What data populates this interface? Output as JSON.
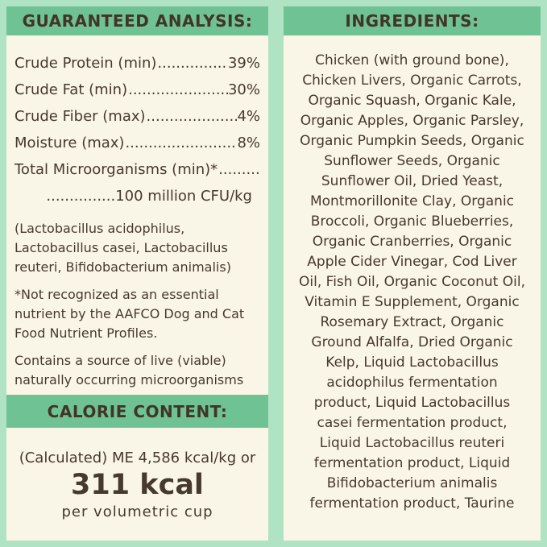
{
  "colors": {
    "frame_green": "#afe3c3",
    "header_band_green": "#6fc294",
    "panel_cream": "#faf6e7",
    "text_brown": "#46392e"
  },
  "leader_dots": "........................................................",
  "guaranteed_analysis": {
    "title": "GUARANTEED ANALYSIS:",
    "rows": [
      {
        "label": "Crude Protein (min)",
        "value": "39%"
      },
      {
        "label": "Crude Fat (min)",
        "value": "30%"
      },
      {
        "label": "Crude Fiber (max)",
        "value": "4%"
      },
      {
        "label": "Moisture (max)",
        "value": "8%"
      },
      {
        "label": "Total Microorganisms (min)*",
        "value": ""
      }
    ],
    "continuation": "...............100 million CFU/kg",
    "species_note": "(Lactobacillus acidophilus,\nLactobacillus casei, Lactobacillus\nreuteri, Bifidobacterium animalis)",
    "aafco_note": "*Not recognized as an essential\nnutrient by the AAFCO Dog and Cat\nFood Nutrient Profiles.",
    "live_note": "Contains a source of live (viable)\nnaturally occurring microorganisms"
  },
  "calorie_content": {
    "title": "CALORIE CONTENT:",
    "calculated_line": "(Calculated) ME 4,586 kcal/kg or",
    "kcal_value": "311 kcal",
    "per_line": "per volumetric cup"
  },
  "ingredients": {
    "title": "INGREDIENTS:",
    "list": "Chicken (with ground bone),\nChicken Livers, Organic Carrots,\nOrganic Squash, Organic Kale,\nOrganic Apples, Organic Parsley,\nOrganic Pumpkin Seeds, Organic\nSunflower Seeds, Organic\nSunflower Oil, Dried Yeast,\nMontmorillonite Clay, Organic\nBroccoli, Organic Blueberries,\nOrganic Cranberries, Organic\nApple Cider Vinegar, Cod Liver\nOil, Fish Oil, Organic Coconut Oil,\nVitamin E Supplement, Organic\nRosemary Extract, Organic\nGround Alfalfa, Dried Organic\nKelp, Liquid Lactobacillus\nacidophilus fermentation\nproduct, Liquid Lactobacillus\ncasei fermentation product,\nLiquid Lactobacillus reuteri\nfermentation product, Liquid\nBifidobacterium animalis\nfermentation product, Taurine"
  }
}
